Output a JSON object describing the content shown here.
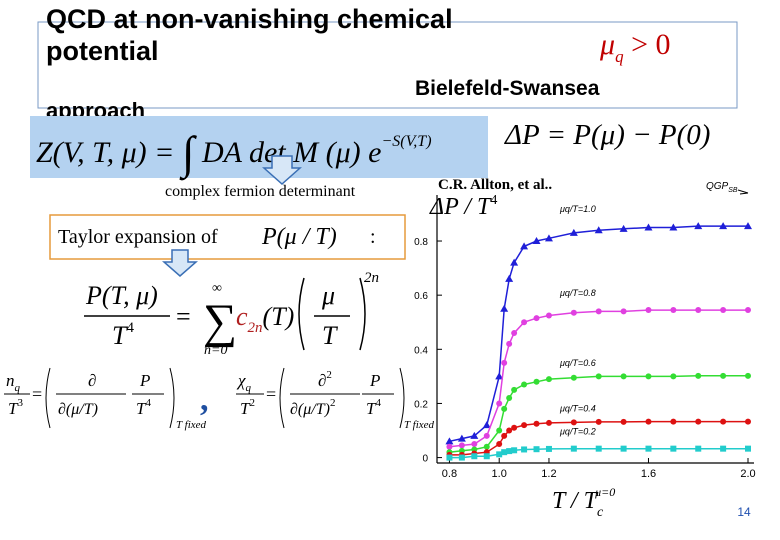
{
  "slide": {
    "title_lines": [
      "QCD at non-vanishing chemical",
      "potential"
    ],
    "title_tail": "approach",
    "condition_symbol": "μ",
    "condition_sub": "q",
    "condition_rest": " > 0",
    "group": "Bielefeld-Swansea",
    "page_number": "14"
  },
  "equations": {
    "partition": {
      "lhs": "Z(V, T, μ) = ",
      "integral": "∫",
      "body": " DA det M (μ) e",
      "exponent": "−S(V,T)"
    },
    "delta_p": "ΔP = P(μ) − P(0)",
    "taylor": {
      "numerator": "P(T, μ)",
      "denominator": "T",
      "den_exp": "4",
      "equals": "=",
      "sum": "∑",
      "upper": "∞",
      "lower": "n=0",
      "coef": "c",
      "coef_sub": "2n",
      "coef_arg": "(T)",
      "frac_num": "μ",
      "frac_den": "T",
      "power": "2n"
    },
    "density": {
      "sym": "n",
      "sub": "q",
      "den": "T",
      "den_exp": "3",
      "equals": "=",
      "partial": "∂",
      "partial_den": "∂(μ/T)",
      "p": "P",
      "t": "T",
      "t_exp": "4",
      "fixed": "T fixed"
    },
    "separator": ",",
    "susceptibility": {
      "sym": "χ",
      "sub": "q",
      "den": "T",
      "den_exp": "2",
      "equals": "=",
      "partial": "∂",
      "partial_exp": "2",
      "partial_den": "∂(μ/T)",
      "partial_den_exp": "2",
      "p": "P",
      "t": "T",
      "t_exp": "4",
      "fixed": "T fixed"
    }
  },
  "annotations": {
    "determinant_note": "complex  fermion determinant",
    "taylor_label": "Taylor expansion of",
    "taylor_arg": "P(μ / T)",
    "taylor_colon": ":"
  },
  "chart_data": {
    "type": "line",
    "source": "C.R. Allton, et al..",
    "y_label": "ΔP / T",
    "y_label_exp": "4",
    "x_label": "T / T",
    "x_label_sub": "c",
    "x_label_sup": "μ=0",
    "limit_label": "QGP",
    "limit_label_sub": "SB",
    "x": [
      0.8,
      0.85,
      0.9,
      0.95,
      1.0,
      1.02,
      1.04,
      1.06,
      1.1,
      1.15,
      1.2,
      1.3,
      1.4,
      1.5,
      1.6,
      1.7,
      1.8,
      1.9,
      2.0
    ],
    "series": [
      {
        "name": "μq/T=1.0",
        "color": "#1f1fd8",
        "marker": "triangle",
        "values": [
          0.06,
          0.07,
          0.08,
          0.12,
          0.3,
          0.55,
          0.66,
          0.72,
          0.78,
          0.8,
          0.81,
          0.83,
          0.84,
          0.845,
          0.85,
          0.85,
          0.855,
          0.855,
          0.855
        ]
      },
      {
        "name": "μq/T=0.8",
        "color": "#e040e0",
        "marker": "circle",
        "values": [
          0.04,
          0.045,
          0.05,
          0.08,
          0.2,
          0.35,
          0.42,
          0.46,
          0.5,
          0.515,
          0.525,
          0.535,
          0.54,
          0.54,
          0.545,
          0.545,
          0.545,
          0.545,
          0.545
        ]
      },
      {
        "name": "μq/T=0.6",
        "color": "#33dd33",
        "marker": "circle",
        "values": [
          0.02,
          0.025,
          0.03,
          0.04,
          0.1,
          0.18,
          0.22,
          0.25,
          0.27,
          0.28,
          0.29,
          0.295,
          0.3,
          0.3,
          0.3,
          0.3,
          0.302,
          0.302,
          0.302
        ]
      },
      {
        "name": "μq/T=0.4",
        "color": "#dd1111",
        "marker": "circle",
        "values": [
          0.01,
          0.01,
          0.015,
          0.02,
          0.05,
          0.08,
          0.1,
          0.11,
          0.12,
          0.125,
          0.128,
          0.13,
          0.132,
          0.132,
          0.133,
          0.133,
          0.133,
          0.133,
          0.133
        ]
      },
      {
        "name": "μq/T=0.2",
        "color": "#22cccc",
        "marker": "square",
        "values": [
          0,
          0,
          0.005,
          0.005,
          0.012,
          0.02,
          0.024,
          0.027,
          0.03,
          0.031,
          0.032,
          0.033,
          0.033,
          0.033,
          0.033,
          0.033,
          0.033,
          0.033,
          0.033
        ]
      }
    ],
    "xlim": [
      0.75,
      2.0
    ],
    "ylim": [
      -0.02,
      0.97
    ],
    "xticks": [
      0.8,
      {
        "value": 1,
        "label": "1.0"
      },
      1.2,
      1.6,
      {
        "value": 2,
        "label": "2.0"
      }
    ],
    "yticks": [
      0,
      0.2,
      0.4,
      0.6,
      0.8
    ]
  }
}
